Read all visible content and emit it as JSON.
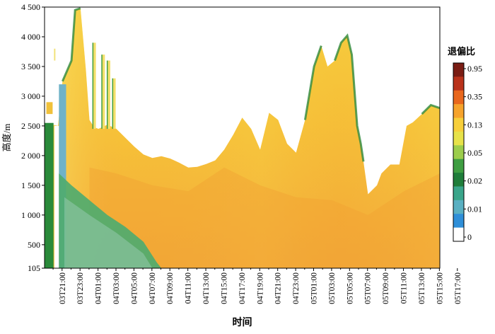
{
  "chart_data": {
    "type": "heatmap",
    "title": "",
    "xlabel": "时间",
    "ylabel": "高度/m",
    "y_ticks": [
      {
        "value": 105,
        "label": "105"
      },
      {
        "value": 500,
        "label": "500"
      },
      {
        "value": 1000,
        "label": "1 000"
      },
      {
        "value": 1500,
        "label": "1 500"
      },
      {
        "value": 2000,
        "label": "2 000"
      },
      {
        "value": 2500,
        "label": "2 500"
      },
      {
        "value": 3000,
        "label": "3 000"
      },
      {
        "value": 3500,
        "label": "3 500"
      },
      {
        "value": 4000,
        "label": "4 000"
      },
      {
        "value": 4500,
        "label": "4 500"
      }
    ],
    "ylim": [
      105,
      4500
    ],
    "x_range_hours": [
      0,
      44
    ],
    "x_ticks": [
      "03T21:00",
      "03T23:00",
      "04T01:00",
      "04T03:00",
      "04T05:00",
      "04T07:00",
      "04T09:00",
      "04T11:00",
      "04T13:00",
      "04T15:00",
      "04T17:00",
      "04T19:00",
      "04T21:00",
      "04T23:00",
      "05T01:00",
      "05T03:00",
      "05T05:00",
      "05T07:00",
      "05T09:00",
      "05T11:00",
      "05T13:00",
      "05T15:00",
      "05T17:00"
    ],
    "colorbar": {
      "title": "退偏比",
      "tick_labels": [
        "0.95",
        "0.35",
        "0.13",
        "0.05",
        "0.02",
        "0.01",
        "0"
      ],
      "colors": [
        "#7a1d14",
        "#b9321b",
        "#e8671d",
        "#f6a32c",
        "#f7cf3b",
        "#e7e24a",
        "#9ccd4c",
        "#3f9e42",
        "#1f7d3a",
        "#3aa58a",
        "#5ab0c2",
        "#2f8fd8",
        "#ffffff"
      ]
    },
    "cloud_top_profile": {
      "note_free": true,
      "points": [
        [
          0.0,
          2550
        ],
        [
          1.5,
          2500
        ],
        [
          2.0,
          3250
        ],
        [
          3.0,
          3600
        ],
        [
          3.4,
          4450
        ],
        [
          4.0,
          4480
        ],
        [
          4.6,
          3450
        ],
        [
          5.0,
          2600
        ],
        [
          5.5,
          2480
        ],
        [
          6.0,
          2450
        ],
        [
          7.0,
          2520
        ],
        [
          8.0,
          2450
        ],
        [
          9.0,
          2300
        ],
        [
          10.0,
          2150
        ],
        [
          11.0,
          2020
        ],
        [
          12.0,
          1960
        ],
        [
          13.0,
          1990
        ],
        [
          14.0,
          1950
        ],
        [
          15.0,
          1880
        ],
        [
          16.0,
          1800
        ],
        [
          17.0,
          1810
        ],
        [
          18.0,
          1860
        ],
        [
          19.0,
          1920
        ],
        [
          20.0,
          2100
        ],
        [
          21.0,
          2350
        ],
        [
          22.0,
          2640
        ],
        [
          23.0,
          2450
        ],
        [
          24.0,
          2100
        ],
        [
          25.0,
          2720
        ],
        [
          26.0,
          2600
        ],
        [
          27.0,
          2200
        ],
        [
          28.0,
          2050
        ],
        [
          29.0,
          2600
        ],
        [
          30.0,
          3500
        ],
        [
          30.8,
          3850
        ],
        [
          31.5,
          3500
        ],
        [
          32.3,
          3600
        ],
        [
          33.0,
          3900
        ],
        [
          33.7,
          4020
        ],
        [
          34.2,
          3700
        ],
        [
          34.8,
          2500
        ],
        [
          35.2,
          2200
        ],
        [
          35.5,
          1900
        ],
        [
          36.0,
          1350
        ],
        [
          37.0,
          1500
        ],
        [
          37.5,
          1700
        ],
        [
          38.5,
          1850
        ],
        [
          39.5,
          1850
        ],
        [
          40.3,
          2500
        ],
        [
          41.0,
          2560
        ],
        [
          42.0,
          2700
        ],
        [
          43.0,
          2850
        ],
        [
          44.0,
          2800
        ]
      ]
    }
  }
}
